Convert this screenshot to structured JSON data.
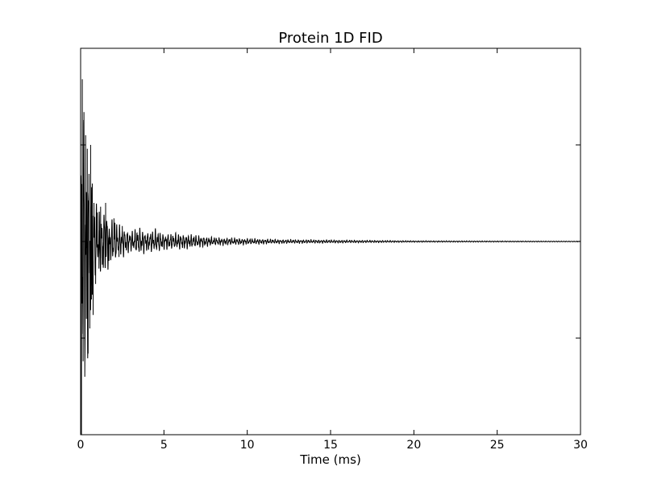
{
  "chart_data": {
    "type": "line",
    "title": "Protein 1D FID",
    "xlabel": "Time (ms)",
    "ylabel": "",
    "xlim": [
      0,
      30
    ],
    "ylim": [
      -1,
      1
    ],
    "x_ticks": [
      "0",
      "5",
      "10",
      "15",
      "20",
      "25",
      "30"
    ],
    "y_tick_values": [
      -0.5,
      0,
      0.5
    ],
    "y_tick_labels_shown": false,
    "grid": false,
    "line_color": "#000000",
    "series": [
      {
        "x": [
          0,
          0.05,
          0.1,
          0.15,
          0.2,
          0.25,
          0.3,
          0.35,
          0.4,
          0.45,
          0.5,
          0.55,
          0.6,
          0.65,
          0.7,
          0.75,
          0.8,
          0.9,
          1.0,
          1.1,
          1.2,
          1.3,
          1.5,
          1.7,
          2.0,
          2.3,
          2.5,
          3.0,
          3.5,
          4.0,
          4.5,
          5.0,
          6.0,
          7.0,
          8.0,
          10.0,
          12.0,
          15.0,
          20.0,
          25.0,
          30.0
        ],
        "y": [
          0.1,
          -1.0,
          0.84,
          -0.62,
          0.67,
          -0.7,
          0.55,
          -0.4,
          0.48,
          -0.58,
          0.35,
          -0.45,
          0.5,
          -0.3,
          0.3,
          -0.38,
          0.2,
          -0.22,
          0.15,
          -0.14,
          0.18,
          -0.12,
          0.2,
          -0.1,
          0.12,
          -0.08,
          0.08,
          -0.05,
          0.07,
          -0.05,
          0.06,
          -0.04,
          0.04,
          -0.03,
          0.02,
          -0.015,
          0.01,
          -0.008,
          0.004,
          -0.003,
          0.002
        ]
      }
    ]
  }
}
